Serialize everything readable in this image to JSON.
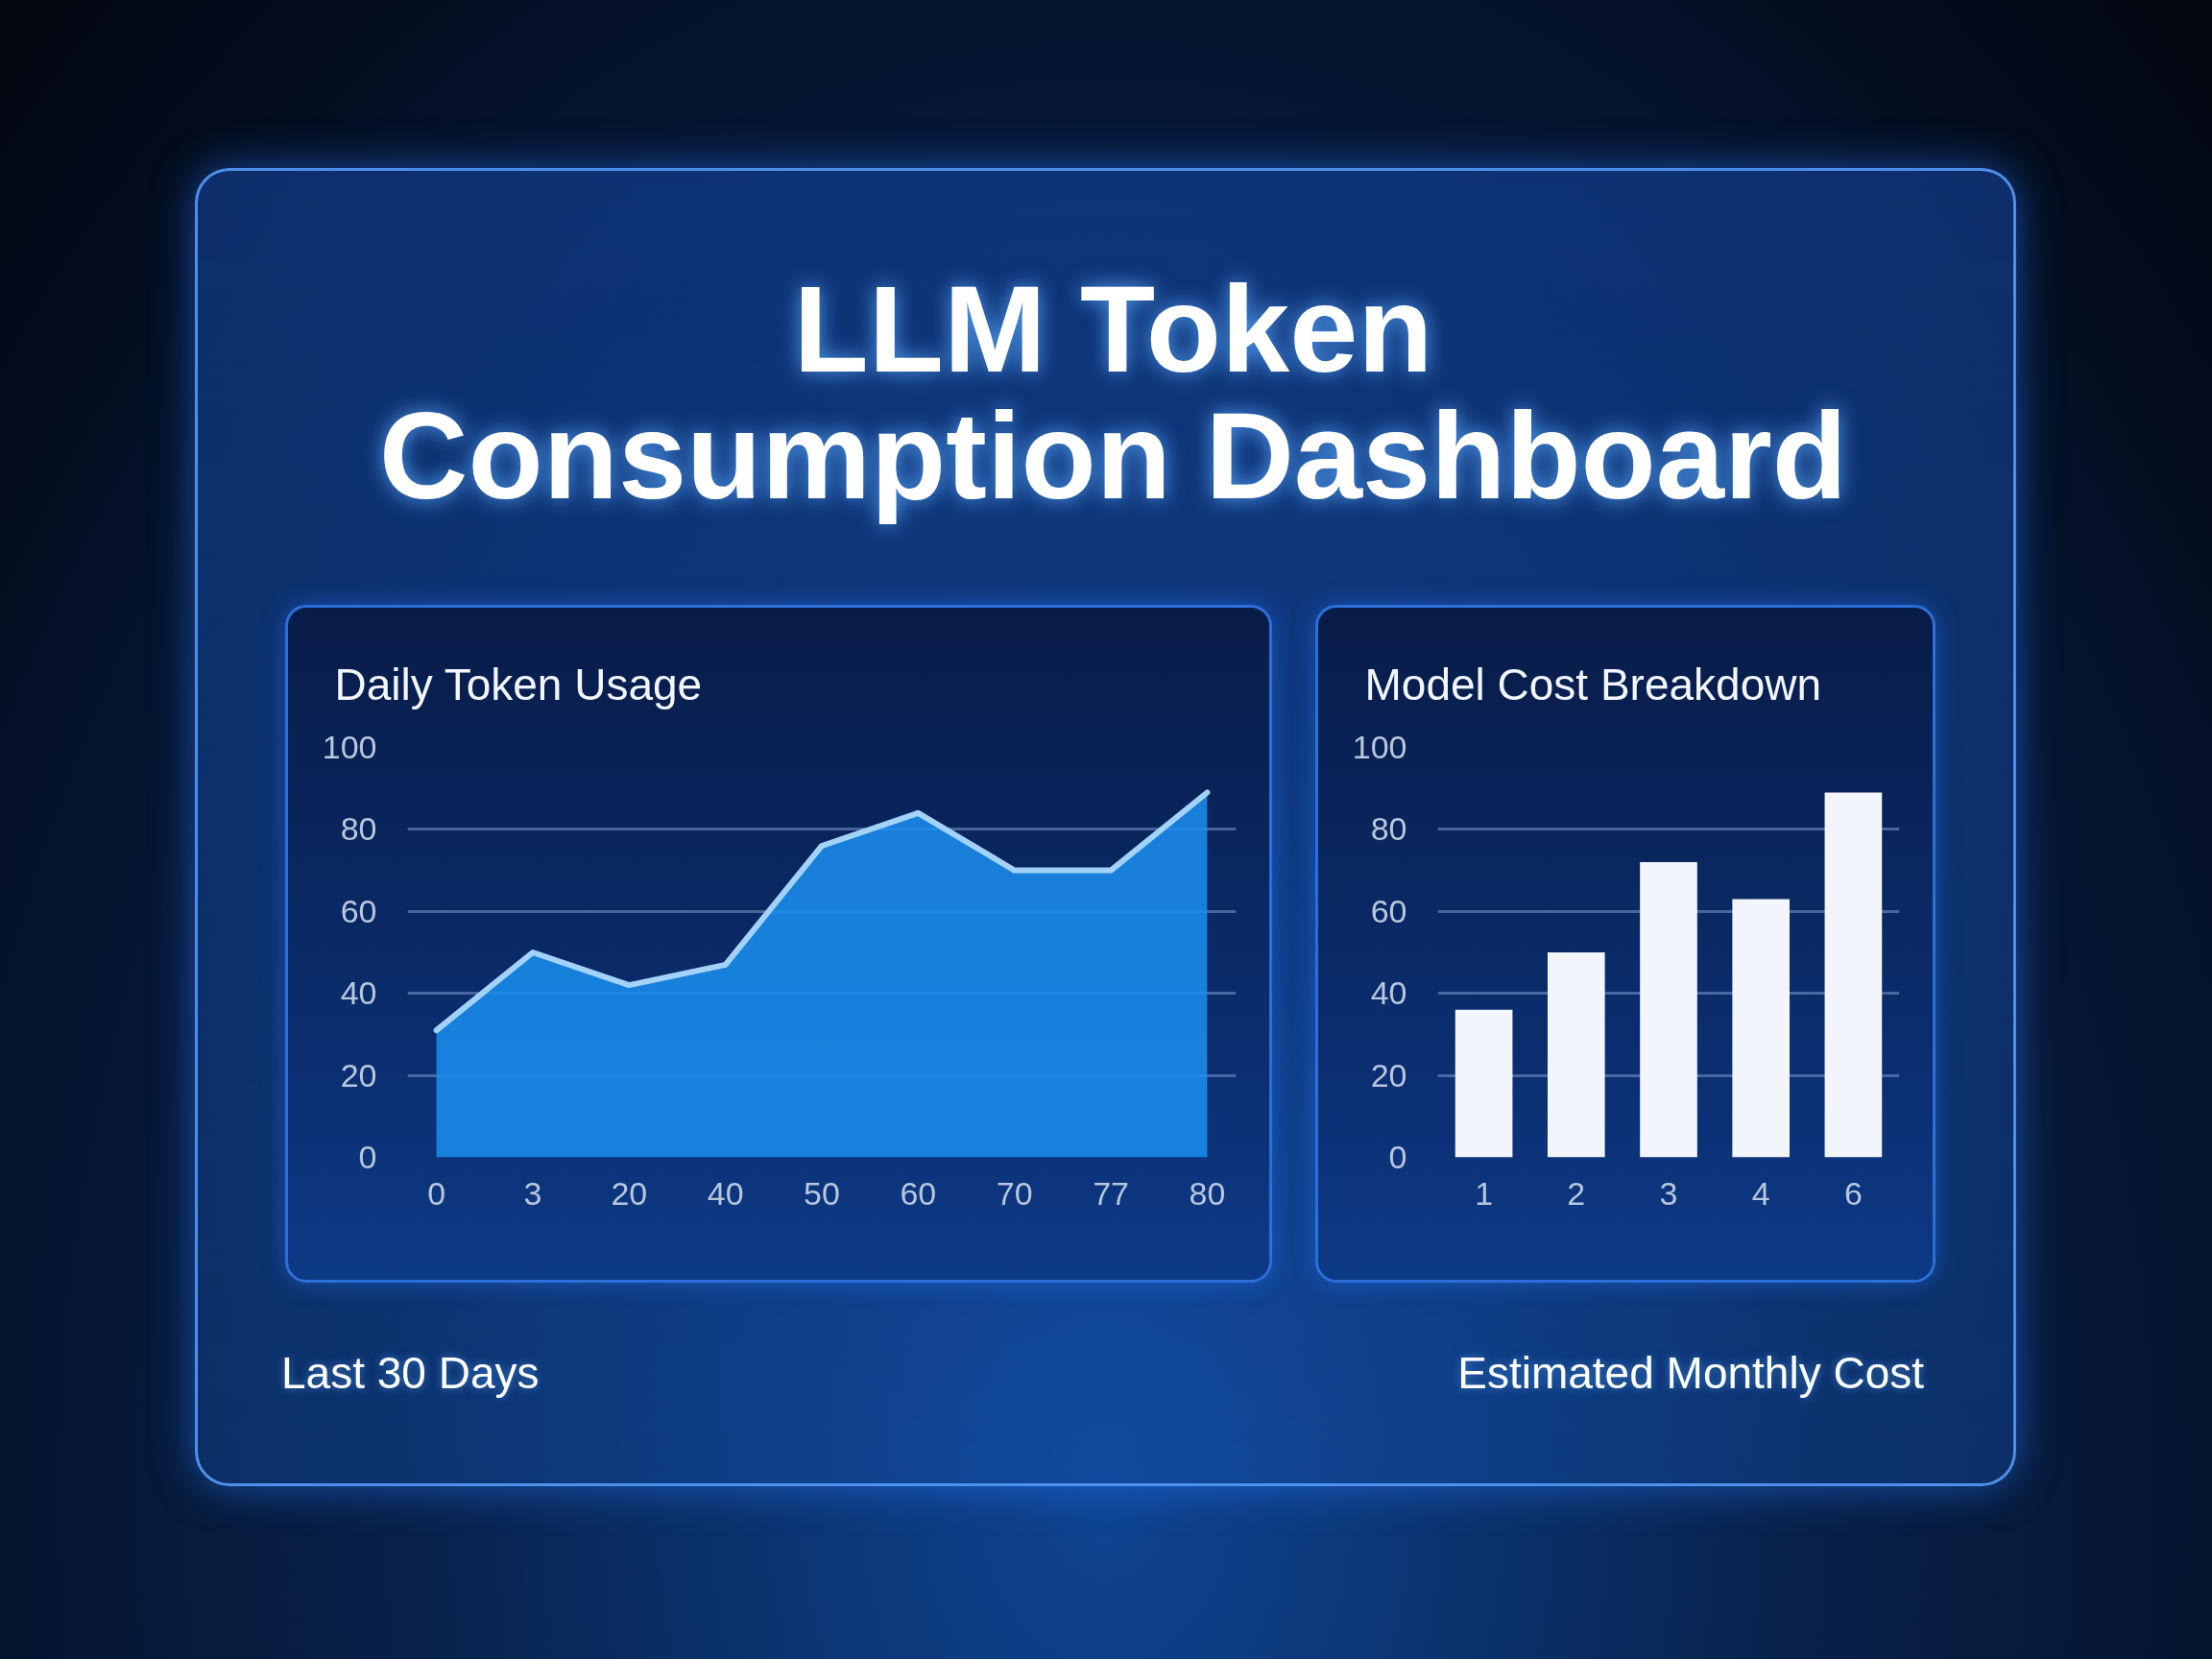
{
  "chart_data": [
    {
      "type": "other",
      "title": "LLM Token\nConsumption Dashboard"
    },
    {
      "type": "area",
      "title": "Daily Token Usage",
      "categories": [
        "0",
        "3",
        "20",
        "40",
        "50",
        "60",
        "70",
        "77",
        "80"
      ],
      "values": [
        31,
        50,
        42,
        47,
        76,
        84,
        70,
        70,
        89
      ],
      "color": "#1a8ff0",
      "ylim": [
        0,
        100
      ],
      "yticks": [
        0,
        20,
        40,
        60,
        80,
        100
      ],
      "grid": "y",
      "annotations": [
        "Last 30 Days"
      ]
    },
    {
      "type": "bar",
      "title": "Model Cost Breakdown",
      "categories": [
        "1",
        "2",
        "3",
        "4",
        "6"
      ],
      "values": [
        36,
        50,
        72,
        63,
        89
      ],
      "color": "#f2f6fc",
      "ylim": [
        0,
        100
      ],
      "yticks": [
        0,
        20,
        40,
        60,
        80,
        100
      ],
      "grid": "y",
      "annotations": [
        "Estimated Monthly Cost"
      ]
    }
  ]
}
